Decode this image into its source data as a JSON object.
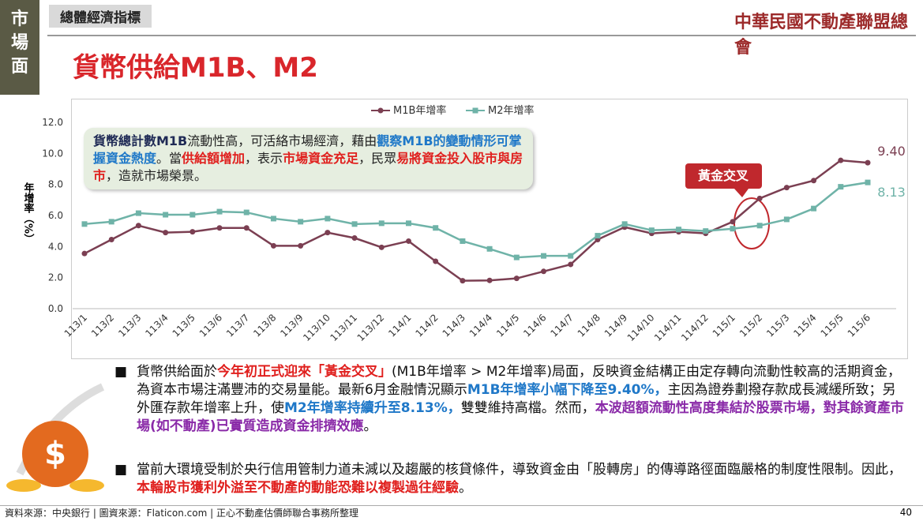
{
  "section_tab": "市場面",
  "category_tab": "總體經濟指標",
  "title": "貨幣供給M1B、M2",
  "logo_text": "中華民國不動產聯盟總會",
  "chart_data": {
    "type": "line",
    "y_label": "年增率（%）",
    "categories": [
      "113/1",
      "113/2",
      "113/3",
      "113/4",
      "113/5",
      "113/6",
      "113/7",
      "113/8",
      "113/9",
      "113/10",
      "113/11",
      "113/12",
      "114/1",
      "114/2",
      "114/3",
      "114/4",
      "114/5",
      "114/6",
      "114/7",
      "114/8",
      "114/9",
      "114/10",
      "114/11",
      "114/12",
      "115/1",
      "115/2",
      "115/3",
      "115/4",
      "115/5",
      "115/6"
    ],
    "series": [
      {
        "name": "M1B年增率",
        "color": "#7b3f52",
        "values": [
          3.55,
          4.45,
          5.35,
          4.9,
          4.95,
          5.2,
          5.2,
          4.05,
          4.05,
          4.9,
          4.55,
          3.95,
          4.35,
          3.05,
          1.8,
          1.82,
          1.95,
          2.4,
          2.85,
          4.45,
          5.25,
          4.85,
          4.95,
          4.85,
          5.6,
          7.1,
          7.8,
          8.25,
          9.55,
          9.4
        ],
        "value_labels": [
          null,
          null,
          null,
          null,
          null,
          null,
          null,
          null,
          null,
          null,
          null,
          null,
          null,
          null,
          null,
          null,
          null,
          null,
          null,
          null,
          null,
          null,
          null,
          null,
          null,
          null,
          null,
          null,
          null,
          "9.40"
        ]
      },
      {
        "name": "M2年增率",
        "color": "#6fb3a8",
        "values": [
          5.45,
          5.6,
          6.15,
          6.05,
          6.05,
          6.25,
          6.2,
          5.8,
          5.6,
          5.8,
          5.45,
          5.5,
          5.5,
          5.2,
          4.35,
          3.85,
          3.3,
          3.4,
          3.4,
          4.7,
          5.45,
          5.05,
          5.1,
          5.0,
          5.15,
          5.35,
          5.75,
          6.45,
          7.85,
          8.13
        ],
        "value_labels": [
          null,
          null,
          null,
          null,
          null,
          null,
          null,
          null,
          null,
          null,
          null,
          null,
          null,
          null,
          null,
          null,
          null,
          null,
          null,
          null,
          null,
          null,
          null,
          null,
          null,
          null,
          null,
          null,
          null,
          "8.13"
        ]
      }
    ],
    "ylim": [
      0,
      12
    ],
    "yticks": [
      {
        "value": 0,
        "label": "0.0"
      },
      {
        "value": 2,
        "label": "2.0"
      },
      {
        "value": 4,
        "label": "4.0"
      },
      {
        "value": 6,
        "label": "6.0"
      },
      {
        "value": 8,
        "label": "8.0"
      },
      {
        "value": 10,
        "label": "10.0"
      },
      {
        "value": 12,
        "label": "12.0"
      }
    ],
    "grid": false,
    "legend": "top",
    "annotation": "黃金交叉"
  },
  "callout": [
    {
      "text": "貨幣總計數M1B",
      "color": "#1f2a55",
      "bold": true
    },
    {
      "text": "流動性高，可活絡市場經濟，藉由",
      "color": "#222222",
      "bold": false
    },
    {
      "text": "觀察M1B的變動情形可掌握資金熱度",
      "color": "#1f78c8",
      "bold": true
    },
    {
      "text": "。當",
      "color": "#222222",
      "bold": false
    },
    {
      "text": "供給額增加",
      "color": "#e0201e",
      "bold": true
    },
    {
      "text": "，表示",
      "color": "#222222",
      "bold": false
    },
    {
      "text": "市場資金充足",
      "color": "#e0201e",
      "bold": true
    },
    {
      "text": "，民眾",
      "color": "#222222",
      "bold": false
    },
    {
      "text": "易將資金投入股市與房市",
      "color": "#e0201e",
      "bold": true
    },
    {
      "text": "，造就市場榮景。",
      "color": "#222222",
      "bold": false
    }
  ],
  "bullets": [
    [
      {
        "text": "貨幣供給面於",
        "color": "#111111",
        "bold": false
      },
      {
        "text": "今年初正式迎來「黃金交叉」",
        "color": "#e0201e",
        "bold": true
      },
      {
        "text": "(M1B年增率 > M2年增率)局面，反映資金結構正由定存轉向流動性較高的活期資金，為資本市場注滿豐沛的交易量能。最新6月金融情況顯示",
        "color": "#111111",
        "bold": false
      },
      {
        "text": "M1B年增率小幅下降至9.40%，",
        "color": "#1f78c8",
        "bold": true
      },
      {
        "text": "主因為證券劃撥存款成長減緩所致；另外匯存款年增率上升，使",
        "color": "#111111",
        "bold": false
      },
      {
        "text": "M2年增率持續升至8.13%，",
        "color": "#1f78c8",
        "bold": true
      },
      {
        "text": "雙雙維持高檔。然而，",
        "color": "#111111",
        "bold": false
      },
      {
        "text": "本波超額流動性高度集結於股票市場，對其餘資產市場(如不動產)已實質造成資金排擠效應",
        "color": "#8a2aa8",
        "bold": true
      },
      {
        "text": "。",
        "color": "#111111",
        "bold": false
      }
    ],
    [
      {
        "text": "當前大環境受制於央行信用管制力道未減以及趨嚴的核貸條件，導致資金由「股轉房」的傳導路徑面臨嚴格的制度性限制。因此，",
        "color": "#111111",
        "bold": false
      },
      {
        "text": "本輪股市獲利外溢至不動產的動能恐難以複製過往經驗",
        "color": "#e0201e",
        "bold": true
      },
      {
        "text": "。",
        "color": "#111111",
        "bold": false
      }
    ]
  ],
  "footer": "資料來源：中央銀行 | 圖資來源：Flaticon.com | 正心不動產估價師聯合事務所整理",
  "page_number": "40"
}
